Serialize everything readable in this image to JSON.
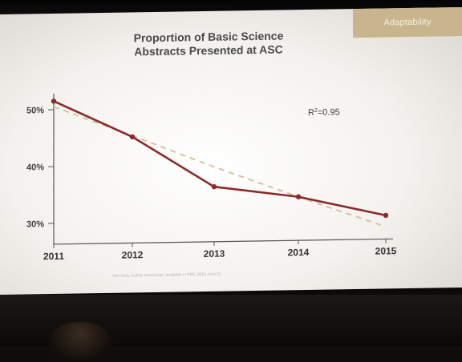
{
  "slide": {
    "section_tag": "Adaptability",
    "title_line1": "Proportion of Basic Science",
    "title_line2": "Abstracts Presented at ASC",
    "r_squared_base": "R",
    "r_squared_sup": "2",
    "r_squared_value": "=0.95",
    "footnote": "Ann Surg. Author manuscript; available in PMC 2016 June 01."
  },
  "colors": {
    "series_line": "#8c2a2a",
    "trend_line": "#d6c2a0",
    "axis": "#555555",
    "tag_bg": "#c8b48d"
  },
  "chart_data": {
    "type": "line",
    "title": "Proportion of Basic Science Abstracts Presented at ASC",
    "x": [
      "2011",
      "2012",
      "2013",
      "2014",
      "2015"
    ],
    "series": [
      {
        "values": [
          51.5,
          45,
          36,
          34,
          30.5
        ]
      }
    ],
    "trendline": {
      "values": [
        50.5,
        45.2,
        39.5,
        34,
        28.5
      ],
      "style": "dashed"
    },
    "y_ticks": [
      "30%",
      "40%",
      "50%"
    ],
    "ylim": [
      27,
      55
    ],
    "annotation": "R2=0.95",
    "grid": false,
    "legend": "none"
  }
}
